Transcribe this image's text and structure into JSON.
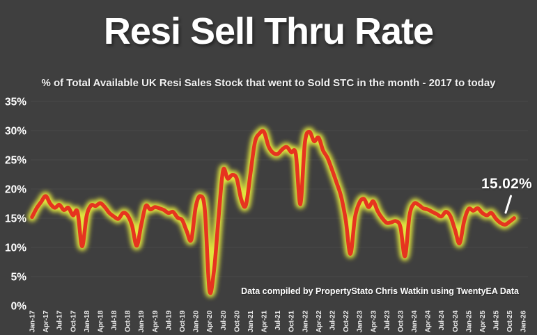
{
  "page": {
    "background": "#3f3f3f",
    "gridline_color": "#515151",
    "text_color": "#ffffff"
  },
  "header": {
    "title": "Resi Sell Thru Rate",
    "subtitle": "% of Total Available UK Resi Sales Stock that went to Sold STC in the month - 2017 to today"
  },
  "credit": "Data compiled by PropertyStato Chris Watkin using TwentyEA Data",
  "chart_data": {
    "type": "line",
    "title": "Resi Sell Thru Rate",
    "subtitle": "% of Total Available UK Resi Sales Stock that went to Sold STC in the month - 2017 to today",
    "grid": true,
    "legend": "none",
    "ylim": [
      0,
      35
    ],
    "y_ticks": [
      "0%",
      "5%",
      "10%",
      "15%",
      "20%",
      "25%",
      "30%",
      "35%"
    ],
    "x_tick_labels": [
      "Jan-17",
      "Apr-17",
      "Jul-17",
      "Oct-17",
      "Jan-18",
      "Apr-18",
      "Jul-18",
      "Oct-18",
      "Jan-19",
      "Apr-19",
      "Jul-19",
      "Oct-19",
      "Jan-20",
      "Apr-20",
      "Jul-20",
      "Oct-20",
      "Jan-21",
      "Apr-21",
      "Jul-21",
      "Oct-21",
      "Jan-22",
      "Apr-22",
      "Jul-22",
      "Oct-22",
      "Jan-23",
      "Apr-23",
      "Jul-23",
      "Oct-23",
      "Jan-24",
      "Apr-24",
      "Jul-24",
      "Oct-24",
      "Jan-25",
      "Apr-25",
      "Jul-25",
      "Oct-25",
      "Jan-26"
    ],
    "months": [
      "Jan-17",
      "Feb-17",
      "Mar-17",
      "Apr-17",
      "May-17",
      "Jun-17",
      "Jul-17",
      "Aug-17",
      "Sep-17",
      "Oct-17",
      "Nov-17",
      "Dec-17",
      "Jan-18",
      "Feb-18",
      "Mar-18",
      "Apr-18",
      "May-18",
      "Jun-18",
      "Jul-18",
      "Aug-18",
      "Sep-18",
      "Oct-18",
      "Nov-18",
      "Dec-18",
      "Jan-19",
      "Feb-19",
      "Mar-19",
      "Apr-19",
      "May-19",
      "Jun-19",
      "Jul-19",
      "Aug-19",
      "Sep-19",
      "Oct-19",
      "Nov-19",
      "Dec-19",
      "Jan-20",
      "Feb-20",
      "Mar-20",
      "Apr-20",
      "May-20",
      "Jun-20",
      "Jul-20",
      "Aug-20",
      "Sep-20",
      "Oct-20",
      "Nov-20",
      "Dec-20",
      "Jan-21",
      "Feb-21",
      "Mar-21",
      "Apr-21",
      "May-21",
      "Jun-21",
      "Jul-21",
      "Aug-21",
      "Sep-21",
      "Oct-21",
      "Nov-21",
      "Dec-21",
      "Jan-22",
      "Feb-22",
      "Mar-22",
      "Apr-22",
      "May-22",
      "Jun-22",
      "Jul-22",
      "Aug-22",
      "Sep-22",
      "Oct-22",
      "Nov-22",
      "Dec-22",
      "Jan-23",
      "Feb-23",
      "Mar-23",
      "Apr-23",
      "May-23",
      "Jun-23",
      "Jul-23",
      "Aug-23",
      "Sep-23",
      "Oct-23",
      "Nov-23",
      "Dec-23",
      "Jan-24",
      "Feb-24",
      "Mar-24",
      "Apr-24",
      "May-24",
      "Jun-24",
      "Jul-24",
      "Aug-24",
      "Sep-24",
      "Oct-24",
      "Nov-24",
      "Dec-24",
      "Jan-25",
      "Feb-25",
      "Mar-25",
      "Apr-25",
      "May-25",
      "Jun-25",
      "Jul-25",
      "Aug-25",
      "Sep-25",
      "Oct-25",
      "Nov-25"
    ],
    "series": [
      {
        "name": "Sell Thru Rate %",
        "color": "#e6341f",
        "glow_color": "#e9ed3d",
        "values": [
          15.2,
          16.7,
          17.8,
          18.8,
          17.5,
          16.8,
          17.3,
          16.4,
          16.8,
          15.5,
          16.1,
          10.2,
          15.4,
          17.2,
          17.1,
          17.6,
          16.9,
          15.9,
          15.3,
          14.9,
          15.9,
          15.5,
          13.7,
          10.3,
          13.8,
          17.1,
          16.5,
          16.9,
          16.7,
          16.4,
          15.9,
          16.1,
          15.1,
          14.7,
          12.8,
          11.3,
          17.0,
          18.8,
          16.4,
          2.7,
          6.0,
          15.0,
          23.2,
          21.8,
          22.4,
          21.8,
          18.2,
          17.2,
          22.5,
          28.0,
          29.5,
          29.8,
          27.3,
          26.2,
          26.0,
          26.8,
          27.2,
          26.3,
          26.0,
          17.4,
          28.0,
          29.8,
          28.2,
          28.8,
          26.6,
          25.3,
          23.2,
          21.0,
          18.6,
          14.5,
          8.9,
          15.1,
          17.7,
          18.3,
          16.9,
          17.9,
          16.2,
          15.0,
          14.2,
          14.3,
          14.5,
          13.5,
          8.5,
          15.5,
          17.5,
          17.3,
          16.7,
          16.5,
          16.1,
          15.7,
          15.3,
          16.1,
          15.3,
          13.0,
          10.7,
          14.5,
          16.6,
          16.3,
          16.7,
          15.9,
          15.5,
          15.9,
          14.9,
          14.2,
          13.9,
          14.4,
          15.02
        ]
      }
    ],
    "last_point_label": "15.02%"
  }
}
